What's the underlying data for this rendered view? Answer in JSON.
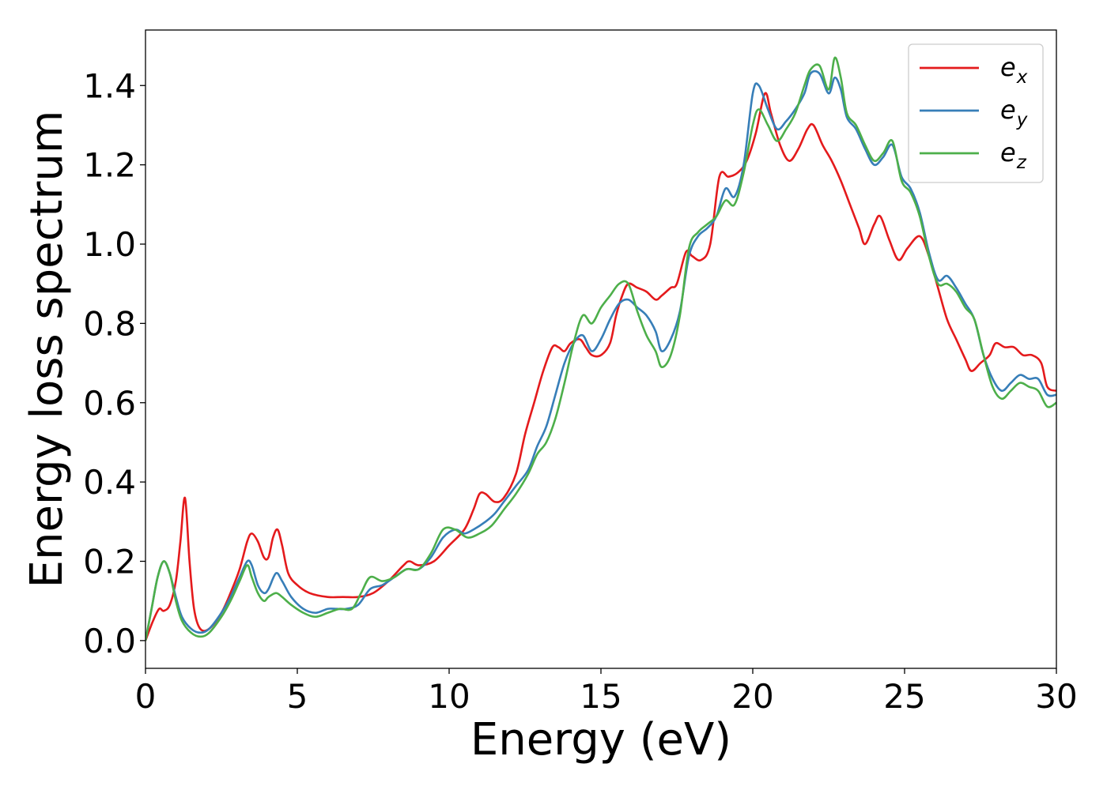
{
  "chart_data": {
    "type": "line",
    "xlabel": "Energy (eV)",
    "ylabel": "Energy loss spectrum",
    "xlim": [
      0,
      30
    ],
    "ylim": [
      -0.07,
      1.54
    ],
    "xticks": [
      0,
      5,
      10,
      15,
      20,
      25,
      30
    ],
    "xtick_labels": [
      "0",
      "5",
      "10",
      "15",
      "20",
      "25",
      "30"
    ],
    "yticks": [
      0.0,
      0.2,
      0.4,
      0.6,
      0.8,
      1.0,
      1.2,
      1.4
    ],
    "ytick_labels": [
      "0.0",
      "0.2",
      "0.4",
      "0.6",
      "0.8",
      "1.0",
      "1.2",
      "1.4"
    ],
    "grid": false,
    "legend_position": "top-right",
    "series": [
      {
        "name": "e",
        "subscript": "x",
        "color": "#e41a1c",
        "points": [
          [
            0,
            0.0
          ],
          [
            0.25,
            0.05
          ],
          [
            0.45,
            0.08
          ],
          [
            0.6,
            0.075
          ],
          [
            0.8,
            0.09
          ],
          [
            1.0,
            0.15
          ],
          [
            1.15,
            0.25
          ],
          [
            1.3,
            0.36
          ],
          [
            1.45,
            0.2
          ],
          [
            1.6,
            0.08
          ],
          [
            1.8,
            0.03
          ],
          [
            2.1,
            0.03
          ],
          [
            2.5,
            0.07
          ],
          [
            2.8,
            0.12
          ],
          [
            3.1,
            0.18
          ],
          [
            3.35,
            0.25
          ],
          [
            3.5,
            0.27
          ],
          [
            3.7,
            0.25
          ],
          [
            3.9,
            0.21
          ],
          [
            4.05,
            0.21
          ],
          [
            4.2,
            0.26
          ],
          [
            4.35,
            0.28
          ],
          [
            4.5,
            0.24
          ],
          [
            4.7,
            0.17
          ],
          [
            5.0,
            0.14
          ],
          [
            5.4,
            0.12
          ],
          [
            6.0,
            0.11
          ],
          [
            6.5,
            0.11
          ],
          [
            7.0,
            0.11
          ],
          [
            7.5,
            0.12
          ],
          [
            8.0,
            0.15
          ],
          [
            8.5,
            0.19
          ],
          [
            8.7,
            0.2
          ],
          [
            9.0,
            0.19
          ],
          [
            9.5,
            0.2
          ],
          [
            10.0,
            0.24
          ],
          [
            10.5,
            0.28
          ],
          [
            10.8,
            0.33
          ],
          [
            11.0,
            0.37
          ],
          [
            11.2,
            0.37
          ],
          [
            11.5,
            0.35
          ],
          [
            11.8,
            0.36
          ],
          [
            12.2,
            0.42
          ],
          [
            12.5,
            0.52
          ],
          [
            12.8,
            0.6
          ],
          [
            13.1,
            0.68
          ],
          [
            13.4,
            0.74
          ],
          [
            13.6,
            0.74
          ],
          [
            13.8,
            0.73
          ],
          [
            14.0,
            0.75
          ],
          [
            14.3,
            0.76
          ],
          [
            14.5,
            0.74
          ],
          [
            14.7,
            0.72
          ],
          [
            15.0,
            0.72
          ],
          [
            15.3,
            0.75
          ],
          [
            15.5,
            0.82
          ],
          [
            15.7,
            0.87
          ],
          [
            15.9,
            0.9
          ],
          [
            16.2,
            0.89
          ],
          [
            16.5,
            0.88
          ],
          [
            16.8,
            0.86
          ],
          [
            17.0,
            0.87
          ],
          [
            17.3,
            0.89
          ],
          [
            17.5,
            0.9
          ],
          [
            17.8,
            0.98
          ],
          [
            18.0,
            0.97
          ],
          [
            18.3,
            0.96
          ],
          [
            18.6,
            1.0
          ],
          [
            18.9,
            1.17
          ],
          [
            19.2,
            1.17
          ],
          [
            19.5,
            1.18
          ],
          [
            19.8,
            1.21
          ],
          [
            20.1,
            1.28
          ],
          [
            20.4,
            1.38
          ],
          [
            20.6,
            1.33
          ],
          [
            20.9,
            1.25
          ],
          [
            21.2,
            1.21
          ],
          [
            21.5,
            1.24
          ],
          [
            21.8,
            1.29
          ],
          [
            22.0,
            1.3
          ],
          [
            22.3,
            1.25
          ],
          [
            22.6,
            1.21
          ],
          [
            22.9,
            1.16
          ],
          [
            23.2,
            1.1
          ],
          [
            23.5,
            1.04
          ],
          [
            23.7,
            1.0
          ],
          [
            24.0,
            1.05
          ],
          [
            24.2,
            1.07
          ],
          [
            24.5,
            1.01
          ],
          [
            24.8,
            0.96
          ],
          [
            25.1,
            0.99
          ],
          [
            25.5,
            1.02
          ],
          [
            25.8,
            0.97
          ],
          [
            26.1,
            0.89
          ],
          [
            26.4,
            0.81
          ],
          [
            26.7,
            0.76
          ],
          [
            27.0,
            0.71
          ],
          [
            27.2,
            0.68
          ],
          [
            27.5,
            0.7
          ],
          [
            27.8,
            0.72
          ],
          [
            28.0,
            0.75
          ],
          [
            28.3,
            0.74
          ],
          [
            28.6,
            0.74
          ],
          [
            28.9,
            0.72
          ],
          [
            29.2,
            0.72
          ],
          [
            29.5,
            0.7
          ],
          [
            29.7,
            0.64
          ],
          [
            30.0,
            0.63
          ]
        ]
      },
      {
        "name": "e",
        "subscript": "y",
        "color": "#377eb8",
        "points": [
          [
            0,
            0.0
          ],
          [
            0.2,
            0.08
          ],
          [
            0.4,
            0.16
          ],
          [
            0.6,
            0.2
          ],
          [
            0.8,
            0.17
          ],
          [
            1.0,
            0.11
          ],
          [
            1.2,
            0.06
          ],
          [
            1.5,
            0.03
          ],
          [
            1.8,
            0.02
          ],
          [
            2.1,
            0.03
          ],
          [
            2.5,
            0.07
          ],
          [
            2.8,
            0.11
          ],
          [
            3.1,
            0.16
          ],
          [
            3.35,
            0.2
          ],
          [
            3.5,
            0.19
          ],
          [
            3.7,
            0.14
          ],
          [
            3.9,
            0.12
          ],
          [
            4.05,
            0.13
          ],
          [
            4.3,
            0.17
          ],
          [
            4.5,
            0.15
          ],
          [
            4.8,
            0.11
          ],
          [
            5.2,
            0.08
          ],
          [
            5.6,
            0.07
          ],
          [
            6.0,
            0.08
          ],
          [
            6.3,
            0.08
          ],
          [
            6.6,
            0.08
          ],
          [
            7.0,
            0.09
          ],
          [
            7.4,
            0.13
          ],
          [
            7.8,
            0.14
          ],
          [
            8.2,
            0.16
          ],
          [
            8.6,
            0.18
          ],
          [
            9.0,
            0.18
          ],
          [
            9.4,
            0.21
          ],
          [
            9.8,
            0.26
          ],
          [
            10.2,
            0.28
          ],
          [
            10.5,
            0.27
          ],
          [
            10.8,
            0.28
          ],
          [
            11.2,
            0.3
          ],
          [
            11.5,
            0.32
          ],
          [
            11.8,
            0.35
          ],
          [
            12.2,
            0.39
          ],
          [
            12.6,
            0.43
          ],
          [
            12.9,
            0.49
          ],
          [
            13.2,
            0.54
          ],
          [
            13.5,
            0.62
          ],
          [
            13.8,
            0.7
          ],
          [
            14.1,
            0.75
          ],
          [
            14.4,
            0.77
          ],
          [
            14.7,
            0.73
          ],
          [
            15.0,
            0.76
          ],
          [
            15.3,
            0.81
          ],
          [
            15.6,
            0.85
          ],
          [
            15.9,
            0.86
          ],
          [
            16.2,
            0.84
          ],
          [
            16.5,
            0.82
          ],
          [
            16.8,
            0.78
          ],
          [
            17.0,
            0.73
          ],
          [
            17.3,
            0.76
          ],
          [
            17.6,
            0.83
          ],
          [
            17.9,
            0.97
          ],
          [
            18.2,
            1.02
          ],
          [
            18.5,
            1.04
          ],
          [
            18.8,
            1.07
          ],
          [
            19.1,
            1.14
          ],
          [
            19.4,
            1.12
          ],
          [
            19.7,
            1.2
          ],
          [
            20.0,
            1.38
          ],
          [
            20.2,
            1.4
          ],
          [
            20.5,
            1.34
          ],
          [
            20.8,
            1.29
          ],
          [
            21.1,
            1.31
          ],
          [
            21.4,
            1.34
          ],
          [
            21.7,
            1.38
          ],
          [
            21.9,
            1.43
          ],
          [
            22.2,
            1.43
          ],
          [
            22.5,
            1.38
          ],
          [
            22.7,
            1.42
          ],
          [
            22.9,
            1.39
          ],
          [
            23.1,
            1.32
          ],
          [
            23.4,
            1.29
          ],
          [
            23.7,
            1.24
          ],
          [
            24.0,
            1.2
          ],
          [
            24.3,
            1.22
          ],
          [
            24.6,
            1.25
          ],
          [
            24.9,
            1.17
          ],
          [
            25.2,
            1.14
          ],
          [
            25.5,
            1.08
          ],
          [
            25.8,
            0.98
          ],
          [
            26.1,
            0.91
          ],
          [
            26.4,
            0.92
          ],
          [
            26.7,
            0.89
          ],
          [
            27.0,
            0.85
          ],
          [
            27.3,
            0.81
          ],
          [
            27.6,
            0.72
          ],
          [
            27.9,
            0.66
          ],
          [
            28.2,
            0.63
          ],
          [
            28.5,
            0.65
          ],
          [
            28.8,
            0.67
          ],
          [
            29.1,
            0.66
          ],
          [
            29.4,
            0.66
          ],
          [
            29.7,
            0.62
          ],
          [
            30.0,
            0.62
          ]
        ]
      },
      {
        "name": "e",
        "subscript": "z",
        "color": "#4daf4a",
        "points": [
          [
            0,
            0.0
          ],
          [
            0.2,
            0.08
          ],
          [
            0.4,
            0.16
          ],
          [
            0.6,
            0.2
          ],
          [
            0.8,
            0.17
          ],
          [
            1.0,
            0.1
          ],
          [
            1.2,
            0.05
          ],
          [
            1.5,
            0.02
          ],
          [
            1.8,
            0.01
          ],
          [
            2.1,
            0.02
          ],
          [
            2.5,
            0.06
          ],
          [
            2.8,
            0.1
          ],
          [
            3.1,
            0.15
          ],
          [
            3.35,
            0.19
          ],
          [
            3.5,
            0.16
          ],
          [
            3.7,
            0.12
          ],
          [
            3.9,
            0.1
          ],
          [
            4.05,
            0.11
          ],
          [
            4.3,
            0.12
          ],
          [
            4.5,
            0.11
          ],
          [
            4.8,
            0.09
          ],
          [
            5.2,
            0.07
          ],
          [
            5.6,
            0.06
          ],
          [
            6.0,
            0.07
          ],
          [
            6.4,
            0.08
          ],
          [
            6.8,
            0.08
          ],
          [
            7.1,
            0.12
          ],
          [
            7.4,
            0.16
          ],
          [
            7.8,
            0.15
          ],
          [
            8.2,
            0.16
          ],
          [
            8.6,
            0.18
          ],
          [
            9.0,
            0.18
          ],
          [
            9.4,
            0.22
          ],
          [
            9.8,
            0.28
          ],
          [
            10.2,
            0.28
          ],
          [
            10.6,
            0.26
          ],
          [
            11.0,
            0.27
          ],
          [
            11.4,
            0.29
          ],
          [
            11.8,
            0.33
          ],
          [
            12.2,
            0.37
          ],
          [
            12.6,
            0.42
          ],
          [
            12.9,
            0.47
          ],
          [
            13.2,
            0.5
          ],
          [
            13.5,
            0.56
          ],
          [
            13.8,
            0.65
          ],
          [
            14.1,
            0.75
          ],
          [
            14.4,
            0.82
          ],
          [
            14.7,
            0.8
          ],
          [
            15.0,
            0.84
          ],
          [
            15.3,
            0.87
          ],
          [
            15.6,
            0.9
          ],
          [
            15.9,
            0.9
          ],
          [
            16.2,
            0.83
          ],
          [
            16.5,
            0.77
          ],
          [
            16.8,
            0.73
          ],
          [
            17.0,
            0.69
          ],
          [
            17.3,
            0.72
          ],
          [
            17.6,
            0.82
          ],
          [
            17.9,
            0.99
          ],
          [
            18.2,
            1.03
          ],
          [
            18.5,
            1.05
          ],
          [
            18.8,
            1.07
          ],
          [
            19.1,
            1.11
          ],
          [
            19.4,
            1.1
          ],
          [
            19.7,
            1.18
          ],
          [
            20.0,
            1.3
          ],
          [
            20.2,
            1.34
          ],
          [
            20.5,
            1.3
          ],
          [
            20.8,
            1.26
          ],
          [
            21.1,
            1.29
          ],
          [
            21.4,
            1.33
          ],
          [
            21.7,
            1.4
          ],
          [
            21.9,
            1.44
          ],
          [
            22.2,
            1.45
          ],
          [
            22.5,
            1.39
          ],
          [
            22.7,
            1.47
          ],
          [
            22.9,
            1.42
          ],
          [
            23.1,
            1.33
          ],
          [
            23.4,
            1.3
          ],
          [
            23.7,
            1.25
          ],
          [
            24.0,
            1.21
          ],
          [
            24.3,
            1.23
          ],
          [
            24.6,
            1.26
          ],
          [
            24.9,
            1.16
          ],
          [
            25.2,
            1.13
          ],
          [
            25.5,
            1.07
          ],
          [
            25.8,
            0.97
          ],
          [
            26.1,
            0.9
          ],
          [
            26.4,
            0.9
          ],
          [
            26.7,
            0.88
          ],
          [
            27.0,
            0.84
          ],
          [
            27.3,
            0.81
          ],
          [
            27.6,
            0.72
          ],
          [
            27.9,
            0.64
          ],
          [
            28.2,
            0.61
          ],
          [
            28.5,
            0.63
          ],
          [
            28.8,
            0.65
          ],
          [
            29.1,
            0.64
          ],
          [
            29.4,
            0.63
          ],
          [
            29.7,
            0.59
          ],
          [
            30.0,
            0.6
          ]
        ]
      }
    ]
  }
}
